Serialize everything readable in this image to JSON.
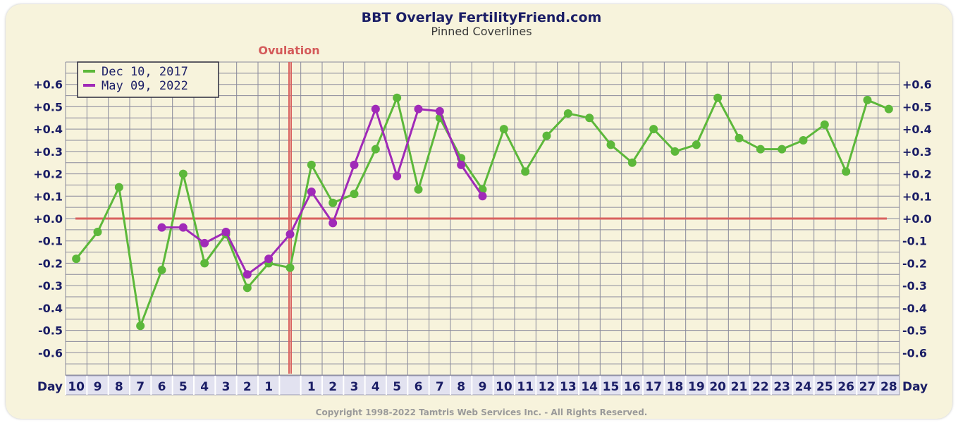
{
  "chart_data": {
    "type": "line",
    "title": "BBT Overlay FertilityFriend.com",
    "subtitle": "Pinned Coverlines",
    "annotation": "Ovulation",
    "xlabel": "Day",
    "ylabel": "",
    "ylim": [
      -0.7,
      0.7
    ],
    "y_ticks": [
      "+0.6",
      "+0.5",
      "+0.4",
      "+0.3",
      "+0.2",
      "+0.1",
      "+0.0",
      "-0.1",
      "-0.2",
      "-0.3",
      "-0.4",
      "-0.5",
      "-0.6"
    ],
    "categories": [
      "10",
      "9",
      "8",
      "7",
      "6",
      "5",
      "4",
      "3",
      "2",
      "1",
      "",
      "1",
      "2",
      "3",
      "4",
      "5",
      "6",
      "7",
      "8",
      "9",
      "10",
      "11",
      "12",
      "13",
      "14",
      "15",
      "16",
      "17",
      "18",
      "19",
      "20",
      "21",
      "22",
      "23",
      "24",
      "25",
      "26",
      "27",
      "28"
    ],
    "ovulation_index": 10,
    "coverline": 0.0,
    "grid": true,
    "legend_position": "top-left",
    "series": [
      {
        "name": "Dec 10, 2017",
        "color": "#5cb83a",
        "values": [
          -0.18,
          -0.06,
          0.14,
          -0.48,
          -0.23,
          0.2,
          -0.2,
          -0.07,
          -0.31,
          -0.2,
          -0.22,
          0.24,
          0.07,
          0.11,
          0.31,
          0.54,
          0.13,
          0.45,
          0.27,
          0.13,
          0.4,
          0.21,
          0.37,
          0.47,
          0.45,
          0.33,
          0.25,
          0.4,
          0.3,
          0.33,
          0.54,
          0.36,
          0.31,
          0.31,
          0.35,
          0.42,
          0.21,
          0.53,
          0.49
        ]
      },
      {
        "name": "May 09, 2022",
        "color": "#a02ab8",
        "values": [
          null,
          null,
          null,
          null,
          -0.04,
          -0.04,
          -0.11,
          -0.06,
          -0.25,
          -0.18,
          -0.07,
          0.12,
          -0.02,
          0.24,
          0.49,
          0.19,
          0.49,
          0.48,
          0.24,
          0.1,
          null,
          null,
          null,
          null,
          null,
          null,
          null,
          null,
          null,
          null,
          null,
          null,
          null,
          null,
          null,
          null,
          null,
          null,
          null
        ]
      }
    ]
  },
  "footer": {
    "copyright": "Copyright 1998-2022 Tamtris Web Services Inc. - All Rights Reserved."
  },
  "colors": {
    "grid": "#8a8a9c",
    "coverline": "#d9625f",
    "ovulation_line": "#d9625f",
    "text": "#1b1e66",
    "background": "#f7f3dc",
    "axis_cell": "#e2e2f0"
  }
}
